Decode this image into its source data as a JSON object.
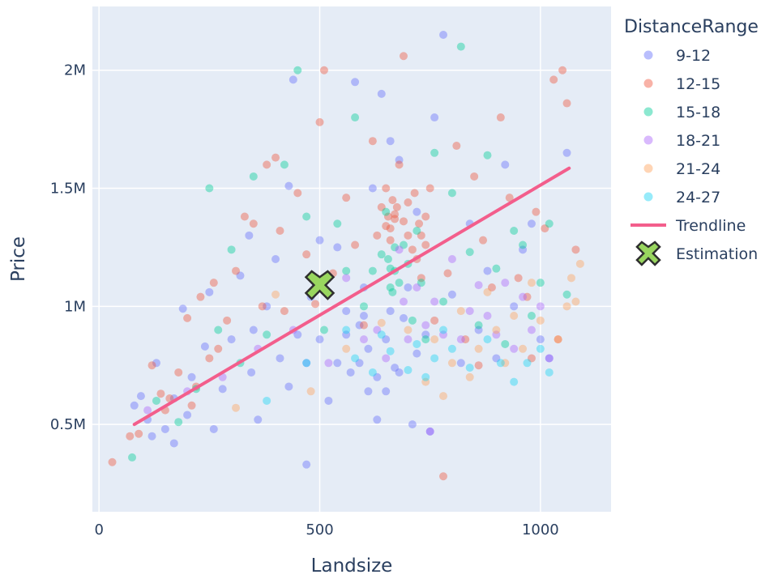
{
  "chart_data": {
    "type": "scatter",
    "xlabel": "Landsize",
    "ylabel": "Price",
    "xlim": [
      -15,
      1160
    ],
    "ylim": [
      130000,
      2270000
    ],
    "x_ticks": [
      0,
      500,
      1000
    ],
    "x_tick_labels": [
      "0",
      "500",
      "1000"
    ],
    "y_ticks": [
      500000,
      1000000,
      1500000,
      2000000
    ],
    "y_tick_labels": [
      "0.5M",
      "1M",
      "1.5M",
      "2M"
    ],
    "grid": true,
    "background": "#e5ecf6",
    "legend": {
      "title": "DistanceRange",
      "placement": "right"
    },
    "series": [
      {
        "name": "9-12",
        "color": "#636efa",
        "points": [
          [
            80,
            580000
          ],
          [
            95,
            620000
          ],
          [
            110,
            520000
          ],
          [
            130,
            760000
          ],
          [
            150,
            480000
          ],
          [
            170,
            610000
          ],
          [
            190,
            990000
          ],
          [
            200,
            540000
          ],
          [
            210,
            700000
          ],
          [
            240,
            830000
          ],
          [
            260,
            480000
          ],
          [
            280,
            650000
          ],
          [
            300,
            860000
          ],
          [
            320,
            1130000
          ],
          [
            340,
            1300000
          ],
          [
            350,
            900000
          ],
          [
            360,
            520000
          ],
          [
            380,
            1000000
          ],
          [
            400,
            1200000
          ],
          [
            410,
            780000
          ],
          [
            430,
            660000
          ],
          [
            440,
            1960000
          ],
          [
            450,
            880000
          ],
          [
            470,
            330000
          ],
          [
            480,
            1040000
          ],
          [
            500,
            860000
          ],
          [
            520,
            600000
          ],
          [
            540,
            1250000
          ],
          [
            560,
            980000
          ],
          [
            580,
            1950000
          ],
          [
            590,
            760000
          ],
          [
            600,
            1080000
          ],
          [
            610,
            640000
          ],
          [
            620,
            1500000
          ],
          [
            630,
            520000
          ],
          [
            640,
            1900000
          ],
          [
            650,
            860000
          ],
          [
            660,
            1700000
          ],
          [
            670,
            740000
          ],
          [
            680,
            1620000
          ],
          [
            690,
            950000
          ],
          [
            700,
            1080000
          ],
          [
            710,
            500000
          ],
          [
            720,
            1400000
          ],
          [
            740,
            880000
          ],
          [
            760,
            1800000
          ],
          [
            780,
            2150000
          ],
          [
            800,
            1050000
          ],
          [
            820,
            760000
          ],
          [
            840,
            1350000
          ],
          [
            860,
            900000
          ],
          [
            880,
            1150000
          ],
          [
            900,
            780000
          ],
          [
            920,
            1600000
          ],
          [
            940,
            1000000
          ],
          [
            960,
            1240000
          ],
          [
            980,
            1350000
          ],
          [
            1000,
            860000
          ],
          [
            1020,
            780000
          ],
          [
            1060,
            1650000
          ],
          [
            570,
            720000
          ],
          [
            610,
            820000
          ],
          [
            630,
            700000
          ],
          [
            590,
            920000
          ],
          [
            650,
            640000
          ],
          [
            680,
            720000
          ],
          [
            720,
            800000
          ],
          [
            560,
            880000
          ],
          [
            540,
            760000
          ],
          [
            600,
            960000
          ],
          [
            430,
            1510000
          ],
          [
            470,
            760000
          ],
          [
            500,
            1280000
          ],
          [
            250,
            1060000
          ],
          [
            170,
            420000
          ],
          [
            120,
            450000
          ],
          [
            345,
            720000
          ],
          [
            750,
            470000
          ],
          [
            520,
            1060000
          ],
          [
            660,
            980000
          ]
        ]
      },
      {
        "name": "12-15",
        "color": "#ef553b",
        "points": [
          [
            30,
            340000
          ],
          [
            70,
            450000
          ],
          [
            90,
            460000
          ],
          [
            120,
            750000
          ],
          [
            140,
            630000
          ],
          [
            160,
            610000
          ],
          [
            180,
            720000
          ],
          [
            200,
            950000
          ],
          [
            210,
            580000
          ],
          [
            230,
            1040000
          ],
          [
            250,
            780000
          ],
          [
            260,
            1100000
          ],
          [
            270,
            820000
          ],
          [
            290,
            940000
          ],
          [
            310,
            1150000
          ],
          [
            330,
            1380000
          ],
          [
            350,
            1350000
          ],
          [
            370,
            1000000
          ],
          [
            380,
            1600000
          ],
          [
            400,
            1630000
          ],
          [
            410,
            1320000
          ],
          [
            420,
            980000
          ],
          [
            450,
            1480000
          ],
          [
            470,
            1220000
          ],
          [
            490,
            1010000
          ],
          [
            500,
            1780000
          ],
          [
            510,
            2000000
          ],
          [
            530,
            1140000
          ],
          [
            560,
            1460000
          ],
          [
            580,
            1260000
          ],
          [
            600,
            920000
          ],
          [
            620,
            1700000
          ],
          [
            630,
            1300000
          ],
          [
            640,
            1420000
          ],
          [
            650,
            1500000
          ],
          [
            655,
            1380000
          ],
          [
            660,
            1280000
          ],
          [
            665,
            1450000
          ],
          [
            670,
            1390000
          ],
          [
            680,
            1600000
          ],
          [
            690,
            2060000
          ],
          [
            700,
            1300000
          ],
          [
            710,
            1240000
          ],
          [
            715,
            1480000
          ],
          [
            720,
            1200000
          ],
          [
            725,
            1350000
          ],
          [
            730,
            1120000
          ],
          [
            740,
            1260000
          ],
          [
            750,
            1500000
          ],
          [
            760,
            940000
          ],
          [
            780,
            280000
          ],
          [
            790,
            1140000
          ],
          [
            810,
            1680000
          ],
          [
            830,
            860000
          ],
          [
            850,
            1550000
          ],
          [
            870,
            1280000
          ],
          [
            890,
            1080000
          ],
          [
            910,
            1800000
          ],
          [
            930,
            1460000
          ],
          [
            950,
            1120000
          ],
          [
            970,
            1040000
          ],
          [
            990,
            1400000
          ],
          [
            1010,
            1330000
          ],
          [
            1030,
            1960000
          ],
          [
            1050,
            2000000
          ],
          [
            1060,
            1860000
          ],
          [
            1080,
            1240000
          ],
          [
            1040,
            860000
          ],
          [
            980,
            780000
          ],
          [
            860,
            750000
          ],
          [
            670,
            1370000
          ],
          [
            675,
            1420000
          ],
          [
            660,
            1330000
          ],
          [
            730,
            1300000
          ],
          [
            740,
            1380000
          ],
          [
            700,
            1440000
          ],
          [
            650,
            1340000
          ],
          [
            690,
            1360000
          ],
          [
            150,
            560000
          ],
          [
            220,
            660000
          ]
        ]
      },
      {
        "name": "15-18",
        "color": "#00cc96",
        "points": [
          [
            75,
            360000
          ],
          [
            130,
            600000
          ],
          [
            180,
            510000
          ],
          [
            220,
            650000
          ],
          [
            250,
            1500000
          ],
          [
            270,
            900000
          ],
          [
            300,
            1240000
          ],
          [
            320,
            760000
          ],
          [
            350,
            1550000
          ],
          [
            380,
            880000
          ],
          [
            420,
            1600000
          ],
          [
            450,
            2000000
          ],
          [
            470,
            1380000
          ],
          [
            490,
            1080000
          ],
          [
            510,
            900000
          ],
          [
            540,
            1350000
          ],
          [
            560,
            1150000
          ],
          [
            580,
            1800000
          ],
          [
            600,
            1000000
          ],
          [
            620,
            1150000
          ],
          [
            640,
            1220000
          ],
          [
            650,
            1400000
          ],
          [
            660,
            1080000
          ],
          [
            670,
            1150000
          ],
          [
            680,
            1100000
          ],
          [
            690,
            1260000
          ],
          [
            700,
            1180000
          ],
          [
            710,
            940000
          ],
          [
            720,
            1320000
          ],
          [
            730,
            1100000
          ],
          [
            740,
            860000
          ],
          [
            760,
            1650000
          ],
          [
            780,
            1020000
          ],
          [
            800,
            1480000
          ],
          [
            820,
            2100000
          ],
          [
            840,
            1230000
          ],
          [
            860,
            920000
          ],
          [
            880,
            1640000
          ],
          [
            900,
            1160000
          ],
          [
            920,
            840000
          ],
          [
            940,
            1320000
          ],
          [
            960,
            1260000
          ],
          [
            980,
            960000
          ],
          [
            1000,
            1100000
          ],
          [
            1020,
            1350000
          ],
          [
            1060,
            1050000
          ],
          [
            660,
            1160000
          ],
          [
            655,
            1200000
          ],
          [
            670,
            1250000
          ],
          [
            665,
            1060000
          ]
        ]
      },
      {
        "name": "18-21",
        "color": "#ab63fa",
        "points": [
          [
            110,
            560000
          ],
          [
            200,
            640000
          ],
          [
            280,
            700000
          ],
          [
            360,
            820000
          ],
          [
            440,
            900000
          ],
          [
            520,
            760000
          ],
          [
            560,
            1120000
          ],
          [
            600,
            860000
          ],
          [
            630,
            900000
          ],
          [
            650,
            780000
          ],
          [
            680,
            1240000
          ],
          [
            700,
            860000
          ],
          [
            720,
            1080000
          ],
          [
            740,
            920000
          ],
          [
            760,
            1020000
          ],
          [
            780,
            880000
          ],
          [
            800,
            1200000
          ],
          [
            820,
            860000
          ],
          [
            840,
            980000
          ],
          [
            860,
            1090000
          ],
          [
            880,
            960000
          ],
          [
            900,
            880000
          ],
          [
            920,
            1100000
          ],
          [
            940,
            820000
          ],
          [
            960,
            1040000
          ],
          [
            980,
            900000
          ],
          [
            1000,
            1000000
          ],
          [
            1020,
            780000
          ],
          [
            750,
            470000
          ],
          [
            690,
            1020000
          ]
        ]
      },
      {
        "name": "21-24",
        "color": "#ffa15a",
        "points": [
          [
            310,
            570000
          ],
          [
            400,
            1050000
          ],
          [
            480,
            640000
          ],
          [
            560,
            820000
          ],
          [
            640,
            930000
          ],
          [
            700,
            900000
          ],
          [
            760,
            860000
          ],
          [
            780,
            620000
          ],
          [
            800,
            760000
          ],
          [
            820,
            980000
          ],
          [
            860,
            820000
          ],
          [
            880,
            1060000
          ],
          [
            900,
            900000
          ],
          [
            920,
            760000
          ],
          [
            940,
            960000
          ],
          [
            960,
            820000
          ],
          [
            980,
            1100000
          ],
          [
            1000,
            940000
          ],
          [
            1040,
            860000
          ],
          [
            1060,
            1000000
          ],
          [
            1080,
            1020000
          ],
          [
            1090,
            1180000
          ],
          [
            1070,
            1120000
          ],
          [
            840,
            700000
          ],
          [
            740,
            680000
          ]
        ]
      },
      {
        "name": "24-27",
        "color": "#19d3f3",
        "points": [
          [
            380,
            600000
          ],
          [
            470,
            760000
          ],
          [
            560,
            900000
          ],
          [
            620,
            720000
          ],
          [
            660,
            810000
          ],
          [
            700,
            730000
          ],
          [
            720,
            840000
          ],
          [
            740,
            700000
          ],
          [
            760,
            780000
          ],
          [
            780,
            900000
          ],
          [
            800,
            820000
          ],
          [
            840,
            740000
          ],
          [
            880,
            860000
          ],
          [
            910,
            760000
          ],
          [
            940,
            680000
          ],
          [
            970,
            760000
          ],
          [
            1000,
            820000
          ],
          [
            1020,
            720000
          ],
          [
            580,
            780000
          ],
          [
            640,
            880000
          ]
        ]
      }
    ],
    "trendline": {
      "name": "Trendline",
      "color": "#f35e8c",
      "x": [
        80,
        1065
      ],
      "y": [
        500000,
        1585000
      ]
    },
    "estimation": {
      "name": "Estimation",
      "color": "#99d65f",
      "x": 500,
      "y": 1090000
    }
  }
}
